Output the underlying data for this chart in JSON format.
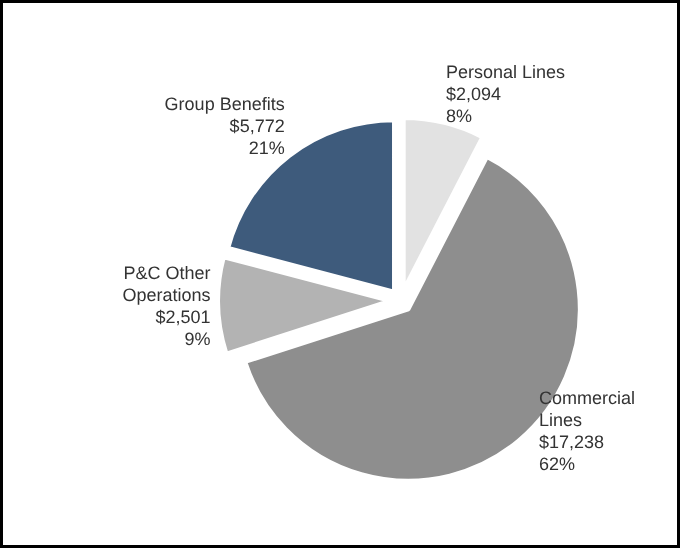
{
  "chart_data": {
    "type": "pie",
    "categories": [
      "Personal Lines",
      "Commercial Lines",
      "P&C Other Operations",
      "Group Benefits"
    ],
    "values": [
      2094,
      17238,
      2501,
      5772
    ],
    "colors": [
      "#e2e2e2",
      "#8e8e8e",
      "#b3b3b3",
      "#3e5b7c"
    ],
    "value_labels": [
      "$2,094\n8%",
      "$17,238\n62%",
      "$2,501\n9%",
      "$5,772\n21%"
    ]
  }
}
